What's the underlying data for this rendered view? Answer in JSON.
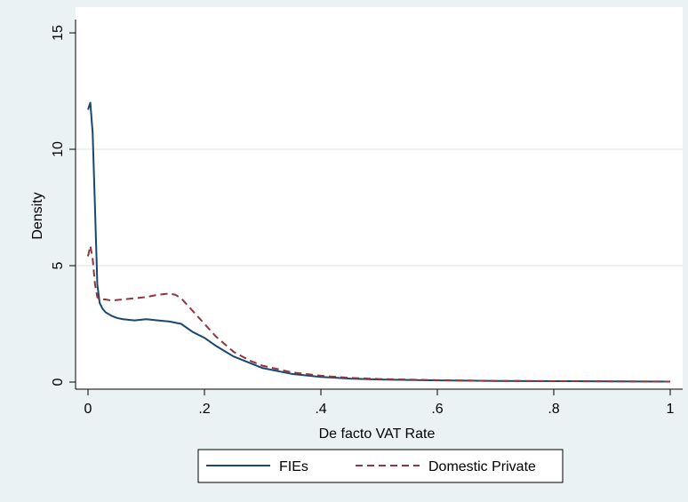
{
  "chart_data": {
    "type": "line",
    "title": "",
    "xlabel": "De facto VAT Rate",
    "ylabel": "Density",
    "xlim": [
      0,
      1
    ],
    "ylim": [
      0,
      15
    ],
    "x_ticks": [
      0,
      0.2,
      0.4,
      0.6,
      0.8,
      1
    ],
    "x_tick_labels": [
      "0",
      ".2",
      ".4",
      ".6",
      ".8",
      "1"
    ],
    "y_ticks": [
      0,
      5,
      10,
      15
    ],
    "y_tick_labels": [
      "0",
      "5",
      "10",
      "15"
    ],
    "grid": "horizontal",
    "legend_position": "bottom",
    "series": [
      {
        "name": "FIEs",
        "color": "#1a476f",
        "style": "solid",
        "x": [
          0.0,
          0.004,
          0.008,
          0.012,
          0.016,
          0.02,
          0.025,
          0.03,
          0.04,
          0.05,
          0.06,
          0.08,
          0.1,
          0.12,
          0.14,
          0.16,
          0.18,
          0.2,
          0.22,
          0.25,
          0.28,
          0.3,
          0.35,
          0.4,
          0.45,
          0.5,
          0.6,
          0.7,
          0.8,
          0.9,
          1.0
        ],
        "y": [
          11.7,
          12.0,
          10.7,
          7.5,
          4.2,
          3.4,
          3.15,
          3.0,
          2.85,
          2.75,
          2.7,
          2.65,
          2.7,
          2.65,
          2.6,
          2.5,
          2.15,
          1.9,
          1.55,
          1.1,
          0.8,
          0.6,
          0.35,
          0.22,
          0.15,
          0.11,
          0.07,
          0.05,
          0.04,
          0.03,
          0.02
        ]
      },
      {
        "name": "Domestic Private",
        "color": "#90353b",
        "style": "dashed",
        "x": [
          0.0,
          0.004,
          0.008,
          0.012,
          0.016,
          0.02,
          0.03,
          0.04,
          0.06,
          0.08,
          0.1,
          0.12,
          0.14,
          0.15,
          0.16,
          0.18,
          0.2,
          0.22,
          0.25,
          0.28,
          0.3,
          0.35,
          0.4,
          0.45,
          0.5,
          0.6,
          0.7,
          0.8,
          0.9,
          1.0
        ],
        "y": [
          5.4,
          5.85,
          5.3,
          4.2,
          3.65,
          3.55,
          3.55,
          3.5,
          3.55,
          3.6,
          3.65,
          3.75,
          3.8,
          3.75,
          3.6,
          3.05,
          2.5,
          1.95,
          1.3,
          0.9,
          0.7,
          0.42,
          0.27,
          0.18,
          0.13,
          0.08,
          0.05,
          0.04,
          0.03,
          0.02
        ]
      }
    ]
  }
}
